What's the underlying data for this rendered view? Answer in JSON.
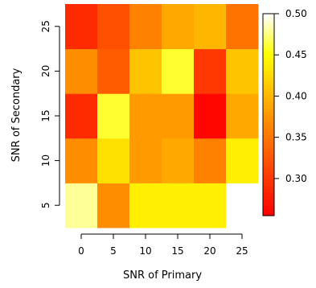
{
  "chart_data": {
    "type": "heatmap",
    "title": "",
    "xlabel": "SNR of Primary",
    "ylabel": "SNR of Secondary",
    "x_categories": [
      "0",
      "5",
      "10",
      "15",
      "20",
      "25"
    ],
    "y_categories": [
      "5",
      "10",
      "15",
      "20",
      "25"
    ],
    "values": [
      [
        0.48,
        0.37,
        0.44,
        0.44,
        0.44,
        0.5
      ],
      [
        0.37,
        0.43,
        0.38,
        0.39,
        0.36,
        0.44
      ],
      [
        0.29,
        0.46,
        0.38,
        0.38,
        0.26,
        0.39
      ],
      [
        0.37,
        0.33,
        0.41,
        0.46,
        0.3,
        0.41
      ],
      [
        0.29,
        0.32,
        0.36,
        0.39,
        0.4,
        0.35
      ]
    ],
    "color_scale": {
      "min": 0.255,
      "max": 0.5,
      "ticks": [
        "0.30",
        "0.35",
        "0.40",
        "0.45",
        "0.50"
      ],
      "tick_values": [
        0.3,
        0.35,
        0.4,
        0.45,
        0.5
      ],
      "palette": "heat"
    },
    "legend": "right"
  }
}
